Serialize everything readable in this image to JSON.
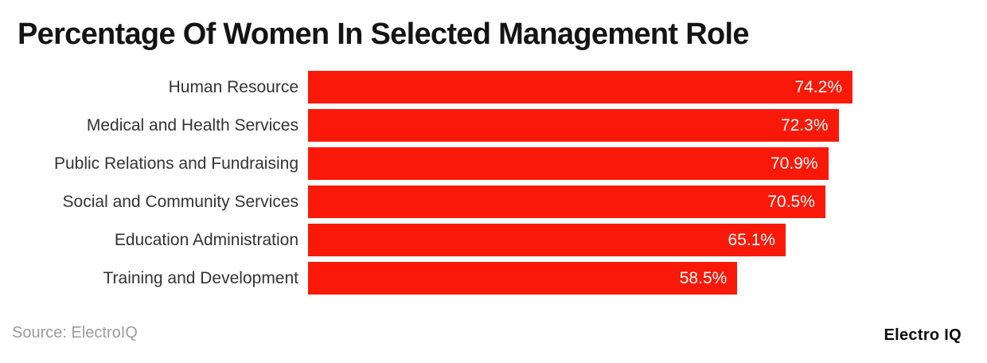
{
  "header": {
    "title": "Percentage Of Women In Selected Management Role"
  },
  "chart_data": {
    "type": "bar",
    "orientation": "horizontal",
    "title": "Percentage Of Women In Selected Management Role",
    "categories": [
      "Human Resource",
      "Medical and Health Services",
      "Public Relations and Fundraising",
      "Social and Community Services",
      "Education Administration",
      "Training and Development"
    ],
    "values": [
      74.2,
      72.3,
      70.9,
      70.5,
      65.1,
      58.5
    ],
    "value_suffix": "%",
    "value_labels": [
      "74.2%",
      "72.3%",
      "70.9%",
      "70.5%",
      "65.1%",
      "58.5%"
    ],
    "xlabel": "",
    "ylabel": "",
    "grid": false,
    "legend": false,
    "value_labels_position": "inside-end"
  },
  "footer": {
    "source": "Source: ElectroIQ",
    "brand": "Electro IQ"
  },
  "colors": {
    "bar": "#fa1908",
    "title_text": "#141414",
    "label_text": "#333333",
    "value_text": "#ffffff",
    "source_text": "#9c9c9c",
    "brand_text": "#0d0d0d"
  }
}
